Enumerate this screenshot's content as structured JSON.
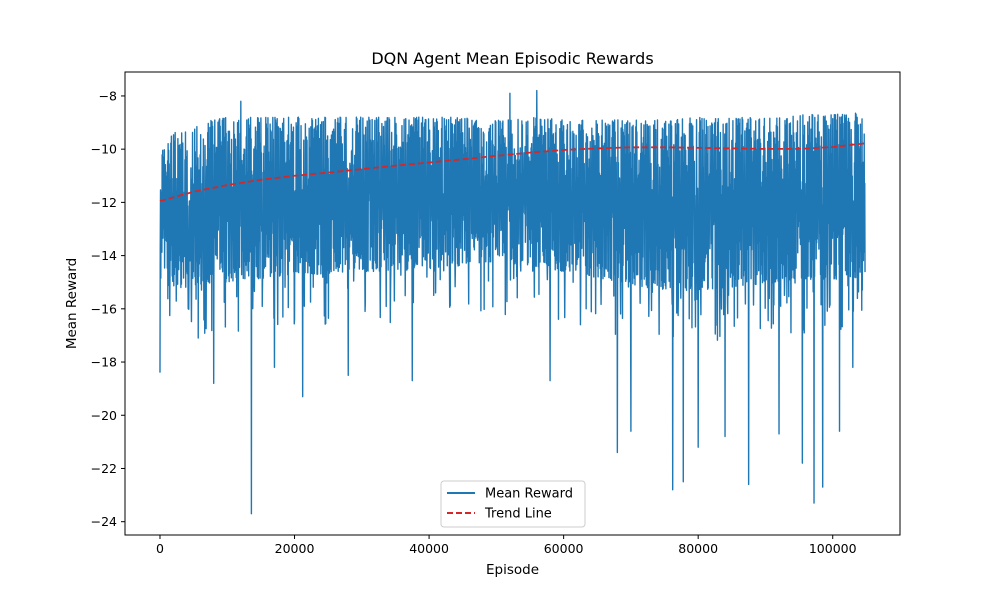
{
  "chart_data": {
    "type": "line",
    "title": "DQN Agent Mean Episodic Rewards",
    "xlabel": "Episode",
    "ylabel": "Mean Reward",
    "xlim": [
      -5200,
      110000
    ],
    "ylim": [
      -24.5,
      -7.1
    ],
    "x_ticks": [
      0,
      20000,
      40000,
      60000,
      80000,
      100000
    ],
    "x_tick_labels": [
      "0",
      "20000",
      "40000",
      "60000",
      "80000",
      "100000"
    ],
    "y_ticks": [
      -24,
      -22,
      -20,
      -18,
      -16,
      -14,
      -12,
      -10,
      -8
    ],
    "y_tick_labels": [
      "−24",
      "−22",
      "−20",
      "−18",
      "−16",
      "−14",
      "−12",
      "−10",
      "−8"
    ],
    "grid": false,
    "legend_position": "lower-center",
    "series": [
      {
        "name": "Mean Reward",
        "color": "#1f77b4",
        "style": "solid",
        "x_range": [
          0,
          104800
        ],
        "envelope": {
          "x": [
            0,
            2000,
            4000,
            6000,
            8000,
            10000,
            12000,
            14000,
            16000,
            18000,
            20000,
            24000,
            28000,
            32000,
            36000,
            40000,
            44000,
            48000,
            52000,
            56000,
            60000,
            64000,
            68000,
            72000,
            76000,
            80000,
            84000,
            88000,
            92000,
            96000,
            100000,
            104800
          ],
          "upper": [
            -10.1,
            -9.4,
            -9.2,
            -9.0,
            -8.9,
            -8.8,
            -8.8,
            -8.8,
            -8.8,
            -8.8,
            -8.8,
            -8.8,
            -8.8,
            -8.8,
            -8.8,
            -8.8,
            -8.8,
            -8.9,
            -8.9,
            -8.8,
            -8.9,
            -8.9,
            -8.9,
            -8.9,
            -8.9,
            -8.8,
            -8.8,
            -8.8,
            -8.8,
            -8.7,
            -8.7,
            -8.6
          ],
          "dense_lower": [
            -15.0,
            -15.2,
            -15.2,
            -15.1,
            -15.0,
            -15.0,
            -14.9,
            -14.9,
            -14.8,
            -14.8,
            -14.7,
            -14.7,
            -14.6,
            -14.6,
            -14.5,
            -14.5,
            -14.4,
            -14.3,
            -14.3,
            -14.4,
            -14.6,
            -14.8,
            -15.0,
            -15.2,
            -15.3,
            -15.3,
            -15.2,
            -15.1,
            -15.0,
            -14.9,
            -14.9,
            -14.8
          ]
        },
        "notable_extremes": [
          {
            "x": 0,
            "y": -18.4
          },
          {
            "x": 8000,
            "y": -18.8
          },
          {
            "x": 12000,
            "y": -8.2
          },
          {
            "x": 13600,
            "y": -23.7
          },
          {
            "x": 17000,
            "y": -18.2
          },
          {
            "x": 21200,
            "y": -19.3
          },
          {
            "x": 28000,
            "y": -18.5
          },
          {
            "x": 37500,
            "y": -18.7
          },
          {
            "x": 52000,
            "y": -7.9
          },
          {
            "x": 56000,
            "y": -7.8
          },
          {
            "x": 58000,
            "y": -18.7
          },
          {
            "x": 68000,
            "y": -21.4
          },
          {
            "x": 70000,
            "y": -20.6
          },
          {
            "x": 76200,
            "y": -22.8
          },
          {
            "x": 77800,
            "y": -22.5
          },
          {
            "x": 80000,
            "y": -21.2
          },
          {
            "x": 84000,
            "y": -20.8
          },
          {
            "x": 87500,
            "y": -22.6
          },
          {
            "x": 92000,
            "y": -20.7
          },
          {
            "x": 95500,
            "y": -21.8
          },
          {
            "x": 97200,
            "y": -23.3
          },
          {
            "x": 98500,
            "y": -22.7
          },
          {
            "x": 101000,
            "y": -20.6
          },
          {
            "x": 103000,
            "y": -18.2
          }
        ]
      },
      {
        "name": "Trend Line",
        "color": "#d62728",
        "style": "dashed",
        "x": [
          0,
          5000,
          10000,
          15000,
          20000,
          25000,
          30000,
          35000,
          40000,
          45000,
          50000,
          55000,
          60000,
          65000,
          70000,
          75000,
          80000,
          85000,
          90000,
          95000,
          100000,
          104800
        ],
        "values": [
          -11.95,
          -11.6,
          -11.35,
          -11.15,
          -11.0,
          -10.88,
          -10.75,
          -10.62,
          -10.5,
          -10.38,
          -10.25,
          -10.13,
          -10.03,
          -9.97,
          -9.93,
          -9.93,
          -9.95,
          -9.97,
          -9.99,
          -9.99,
          -9.92,
          -9.78
        ]
      }
    ]
  }
}
